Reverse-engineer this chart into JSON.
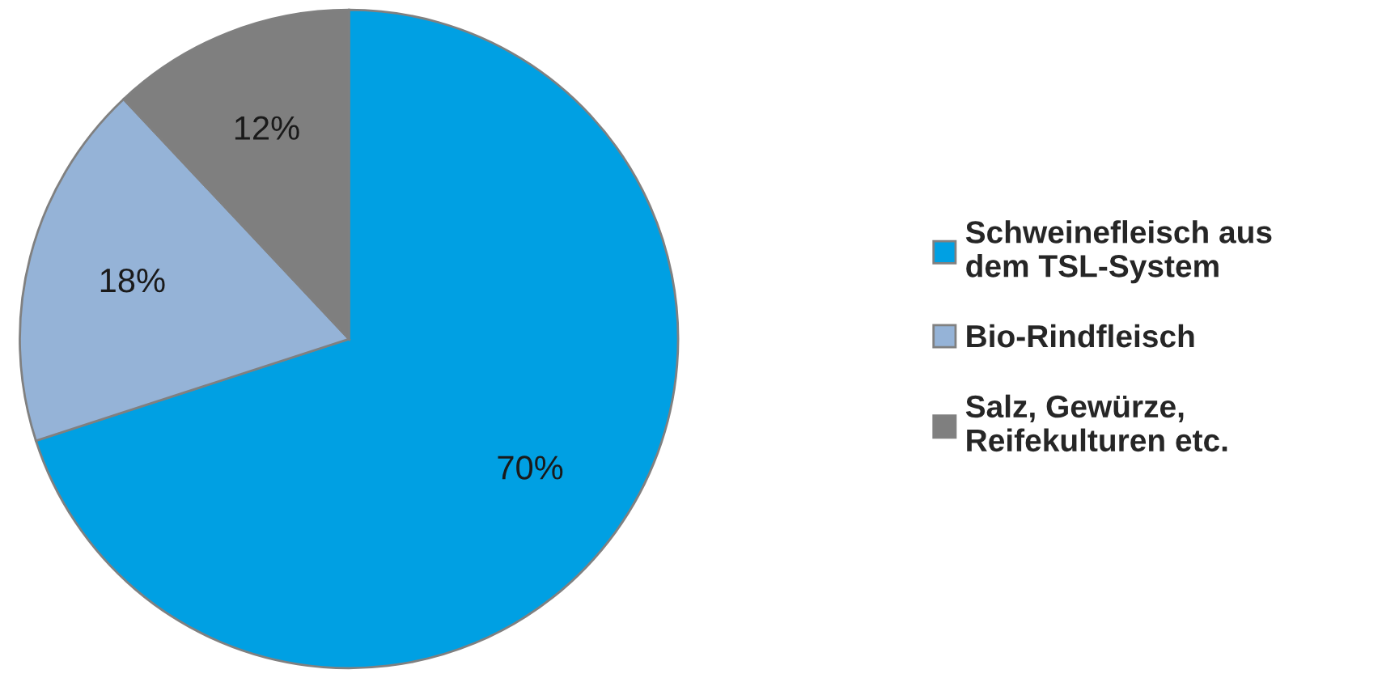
{
  "chart_data": {
    "type": "pie",
    "categories": [
      "Schweinefleisch aus dem TSL-System",
      "Bio-Rindfleisch",
      "Salz, Gewürze, Reifekulturen etc."
    ],
    "values": [
      70,
      18,
      12
    ],
    "colors": [
      "#00a0e3",
      "#95b3d7",
      "#7f7f7f"
    ],
    "value_labels": [
      "70%",
      "18%",
      "12%"
    ],
    "legend": "right"
  }
}
